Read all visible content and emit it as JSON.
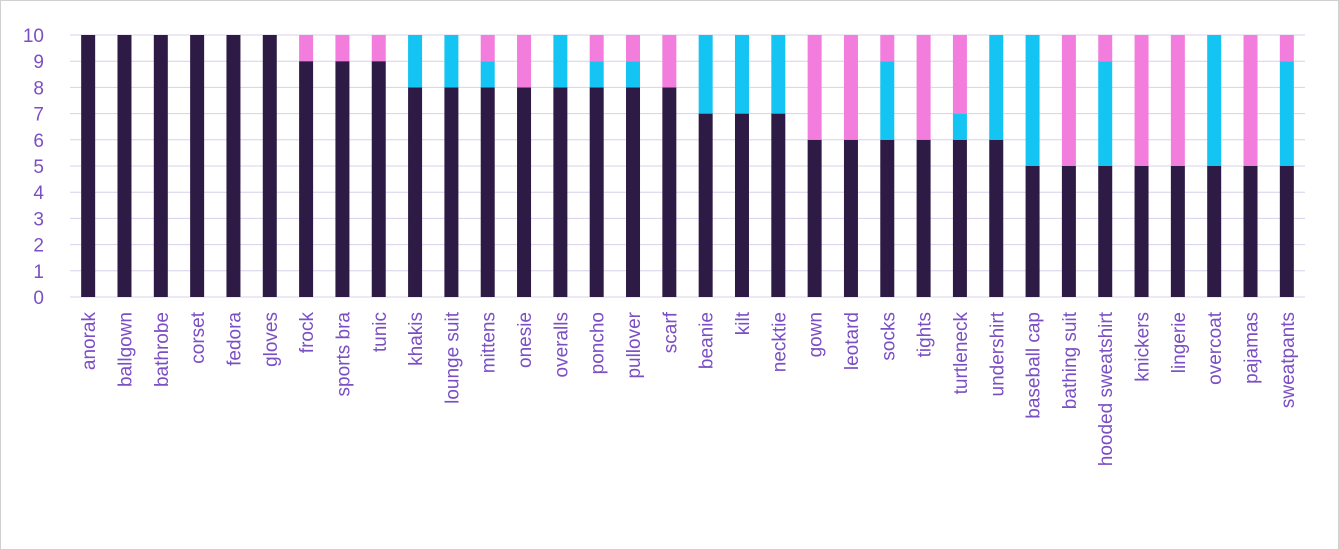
{
  "chart_data": {
    "type": "bar",
    "stacked": true,
    "categories": [
      "anorak",
      "ballgown",
      "bathrobe",
      "corset",
      "fedora",
      "gloves",
      "frock",
      "sports bra",
      "tunic",
      "khakis",
      "lounge suit",
      "mittens",
      "onesie",
      "overalls",
      "poncho",
      "pullover",
      "scarf",
      "beanie",
      "kilt",
      "necktie",
      "gown",
      "leotard",
      "socks",
      "tights",
      "turtleneck",
      "undershirt",
      "baseball cap",
      "bathing suit",
      "hooded sweatshirt",
      "knickers",
      "lingerie",
      "overcoat",
      "pajamas",
      "sweatpants"
    ],
    "series": [
      {
        "color": "#2d1b45",
        "values": [
          10,
          10,
          10,
          10,
          10,
          10,
          9,
          9,
          9,
          8,
          8,
          8,
          8,
          8,
          8,
          8,
          8,
          7,
          7,
          7,
          6,
          6,
          6,
          6,
          6,
          6,
          5,
          5,
          5,
          5,
          5,
          5,
          5,
          5
        ]
      },
      {
        "color": "#14c4f2",
        "values": [
          0,
          0,
          0,
          0,
          0,
          0,
          0,
          0,
          0,
          2,
          2,
          1,
          0,
          2,
          1,
          1,
          0,
          3,
          3,
          3,
          0,
          0,
          3,
          0,
          1,
          4,
          5,
          0,
          4,
          0,
          0,
          5,
          0,
          4
        ]
      },
      {
        "color": "#f27ddc",
        "values": [
          0,
          0,
          0,
          0,
          0,
          0,
          1,
          1,
          1,
          0,
          0,
          1,
          2,
          0,
          1,
          1,
          2,
          0,
          0,
          0,
          4,
          4,
          1,
          4,
          3,
          0,
          0,
          5,
          1,
          5,
          5,
          0,
          5,
          1
        ]
      }
    ],
    "yticks": [
      "0",
      "1",
      "2",
      "3",
      "4",
      "5",
      "6",
      "7",
      "8",
      "9",
      "10"
    ],
    "ylim": [
      0,
      10
    ],
    "grid": true,
    "legend": "none",
    "title": "",
    "xlabel": "",
    "ylabel": ""
  }
}
